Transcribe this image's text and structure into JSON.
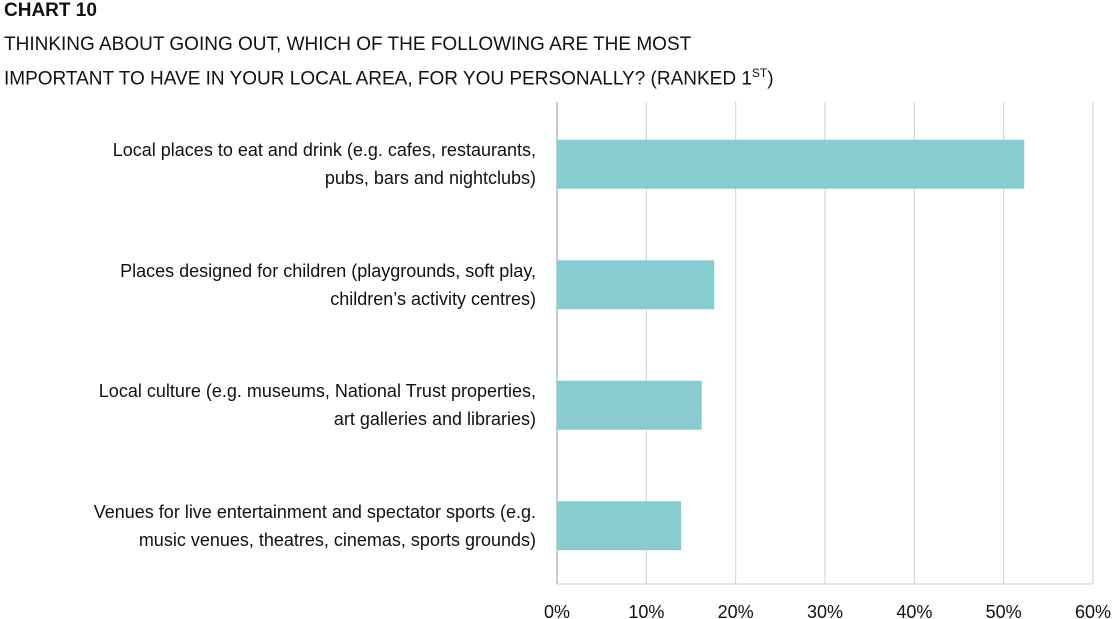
{
  "chart_label": "CHART 10",
  "title_line1": "THINKING ABOUT GOING OUT, WHICH OF THE FOLLOWING ARE THE MOST",
  "title_line2": "IMPORTANT TO HAVE IN YOUR LOCAL AREA, FOR YOU PERSONALLY? (RANKED 1",
  "title_sup": "ST",
  "title_close": ")",
  "bar_color": "#87cdd0",
  "chart_data": {
    "type": "bar",
    "orientation": "horizontal",
    "categories": [
      {
        "line1": "Local places to eat and drink (e.g. cafes, restaurants,",
        "line2": "pubs, bars and nightclubs)"
      },
      {
        "line1": "Places designed for children (playgrounds, soft play,",
        "line2": "children’s activity centres)"
      },
      {
        "line1": "Local culture (e.g. museums, National Trust properties,",
        "line2": "art galleries and libraries)"
      },
      {
        "line1": "Venues for live entertainment and spectator sports (e.g.",
        "line2": "music venues, theatres, cinemas, sports grounds)"
      }
    ],
    "values": [
      52.3,
      17.6,
      16.2,
      13.9
    ],
    "xlim": [
      0,
      60
    ],
    "ticks": [
      "0%",
      "10%",
      "20%",
      "30%",
      "40%",
      "50%",
      "60%"
    ],
    "grid": true
  }
}
